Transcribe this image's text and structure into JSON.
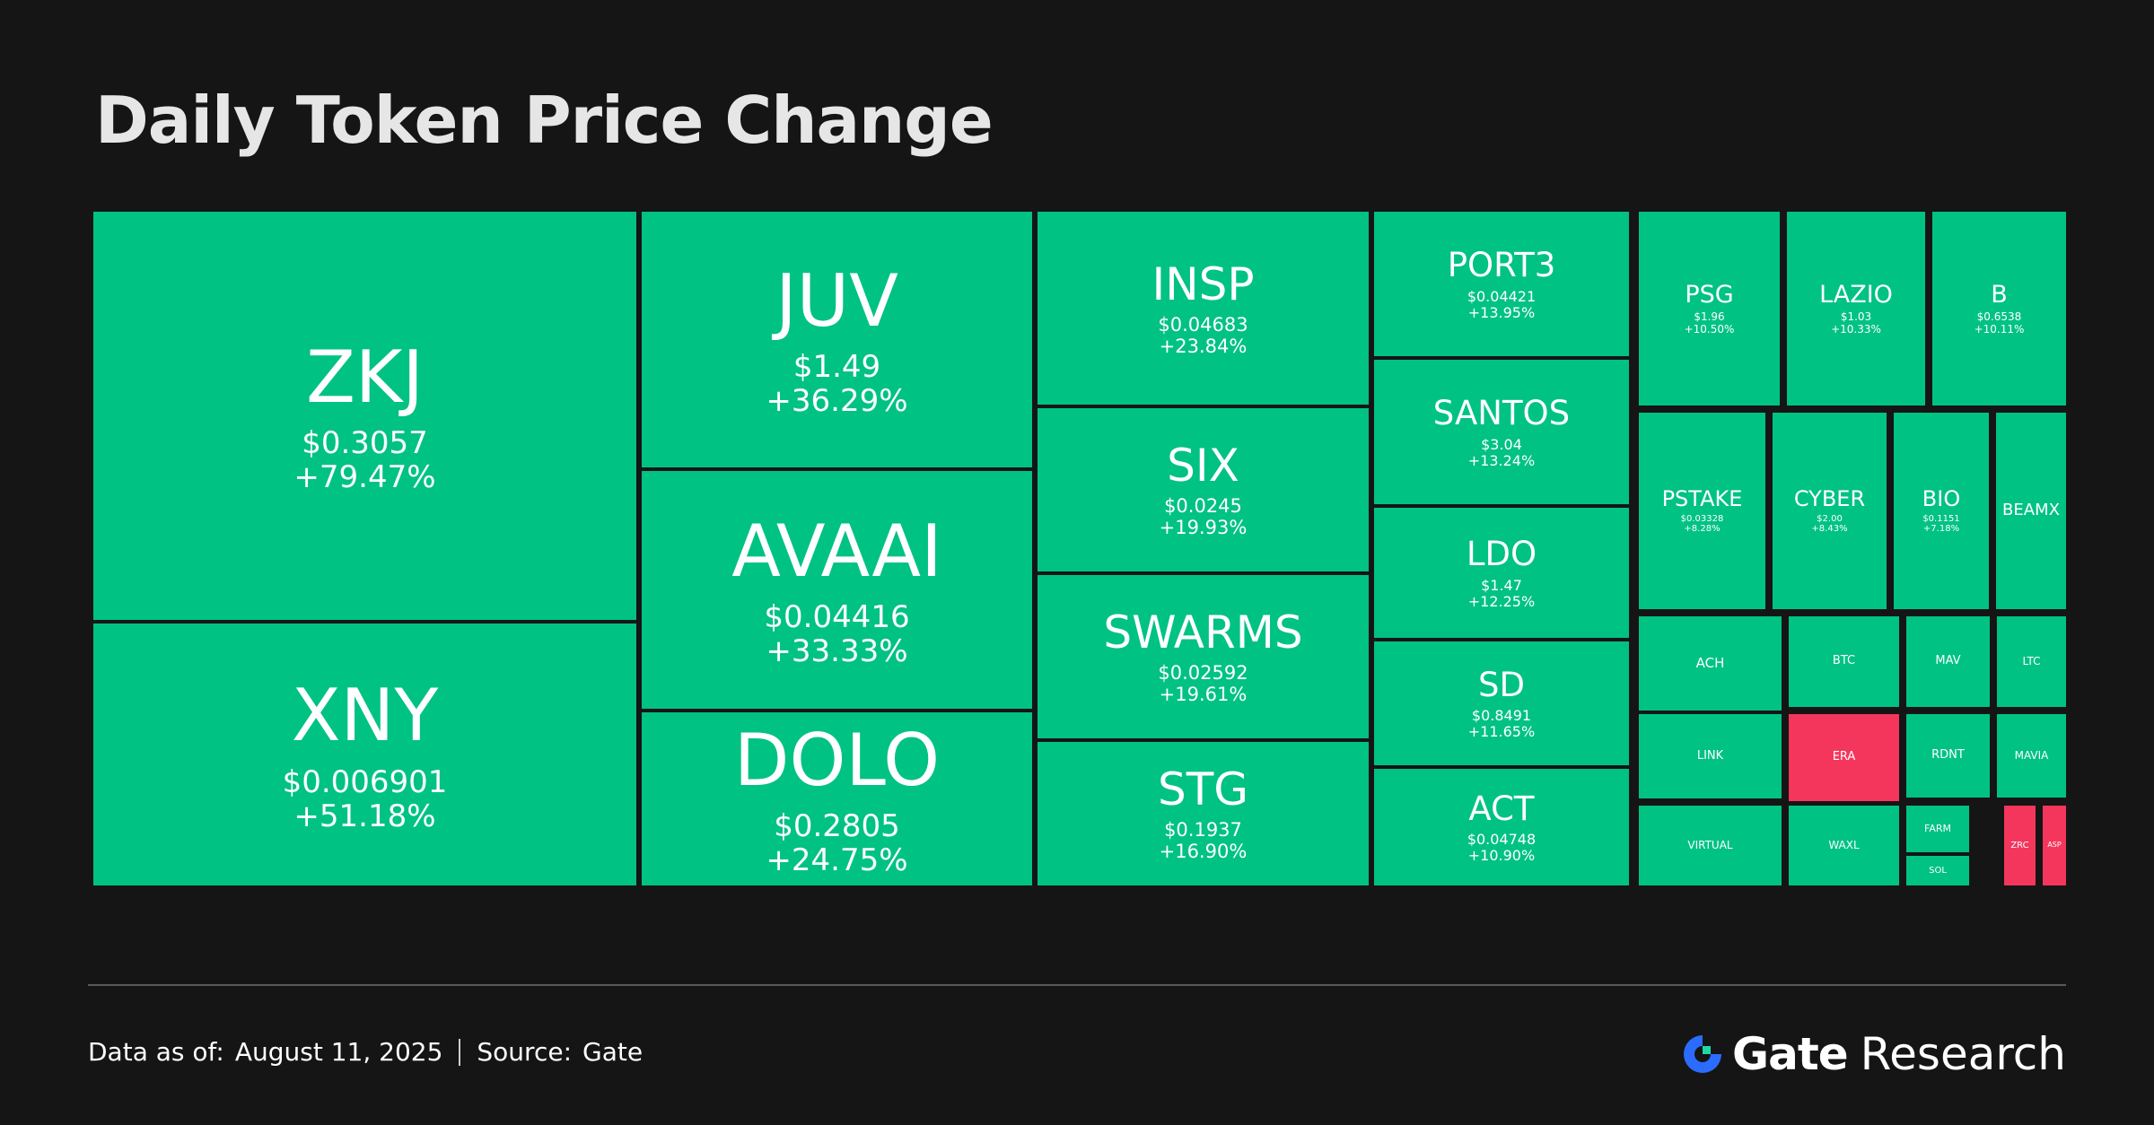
{
  "title": "Daily Token Price Change",
  "colors": {
    "gain": "#00c283",
    "loss": "#f5365c",
    "background": "#151515"
  },
  "chart_data": {
    "type": "treemap",
    "tiles": [
      {
        "symbol": "ZKJ",
        "price": "$0.3057",
        "change": "+79.47%",
        "value": 79.47
      },
      {
        "symbol": "XNY",
        "price": "$0.006901",
        "change": "+51.18%",
        "value": 51.18
      },
      {
        "symbol": "JUV",
        "price": "$1.49",
        "change": "+36.29%",
        "value": 36.29
      },
      {
        "symbol": "AVAAI",
        "price": "$0.04416",
        "change": "+33.33%",
        "value": 33.33
      },
      {
        "symbol": "DOLO",
        "price": "$0.2805",
        "change": "+24.75%",
        "value": 24.75
      },
      {
        "symbol": "INSP",
        "price": "$0.04683",
        "change": "+23.84%",
        "value": 23.84
      },
      {
        "symbol": "SIX",
        "price": "$0.0245",
        "change": "+19.93%",
        "value": 19.93
      },
      {
        "symbol": "SWARMS",
        "price": "$0.02592",
        "change": "+19.61%",
        "value": 19.61
      },
      {
        "symbol": "STG",
        "price": "$0.1937",
        "change": "+16.90%",
        "value": 16.9
      },
      {
        "symbol": "PORT3",
        "price": "$0.04421",
        "change": "+13.95%",
        "value": 13.95
      },
      {
        "symbol": "SANTOS",
        "price": "$3.04",
        "change": "+13.24%",
        "value": 13.24
      },
      {
        "symbol": "LDO",
        "price": "$1.47",
        "change": "+12.25%",
        "value": 12.25
      },
      {
        "symbol": "SD",
        "price": "$0.8491",
        "change": "+11.65%",
        "value": 11.65
      },
      {
        "symbol": "ACT",
        "price": "$0.04748",
        "change": "+10.90%",
        "value": 10.9
      },
      {
        "symbol": "PSG",
        "price": "$1.96",
        "change": "+10.50%",
        "value": 10.5
      },
      {
        "symbol": "LAZIO",
        "price": "$1.03",
        "change": "+10.33%",
        "value": 10.33
      },
      {
        "symbol": "B",
        "price": "$0.6538",
        "change": "+10.11%",
        "value": 10.11
      },
      {
        "symbol": "PSTAKE",
        "price": "$0.03328",
        "change": "+8.28%",
        "value": 8.28
      },
      {
        "symbol": "CYBER",
        "price": "$2.00",
        "change": "+8.43%",
        "value": 8.43
      },
      {
        "symbol": "BIO",
        "price": "$0.1151",
        "change": "+7.18%",
        "value": 7.18
      },
      {
        "symbol": "BEAMX",
        "price": "",
        "change": "",
        "value": null
      },
      {
        "symbol": "ACH",
        "price": "",
        "change": "",
        "value": null
      },
      {
        "symbol": "BTC",
        "price": "",
        "change": "",
        "value": null
      },
      {
        "symbol": "MAV",
        "price": "",
        "change": "",
        "value": null
      },
      {
        "symbol": "LTC",
        "price": "",
        "change": "",
        "value": null
      },
      {
        "symbol": "LINK",
        "price": "",
        "change": "",
        "value": null
      },
      {
        "symbol": "ERA",
        "price": "",
        "change": "",
        "value": null
      },
      {
        "symbol": "RDNT",
        "price": "",
        "change": "",
        "value": null
      },
      {
        "symbol": "MAVIA",
        "price": "",
        "change": "",
        "value": null
      },
      {
        "symbol": "VIRTUAL",
        "price": "",
        "change": "",
        "value": null
      },
      {
        "symbol": "WAXL",
        "price": "",
        "change": "",
        "value": null
      },
      {
        "symbol": "FARM",
        "price": "",
        "change": "",
        "value": null
      },
      {
        "symbol": "SOL",
        "price": "",
        "change": "",
        "value": null
      },
      {
        "symbol": "ZRC",
        "price": "",
        "change": "",
        "value": null
      },
      {
        "symbol": "ASP",
        "price": "",
        "change": "",
        "value": null
      }
    ]
  },
  "footer": {
    "date_label": "Data as of:",
    "date_value": "August 11, 2025",
    "source_label": "Source:",
    "source_value": "Gate",
    "brand_name": "Gate",
    "brand_suffix": "Research"
  }
}
